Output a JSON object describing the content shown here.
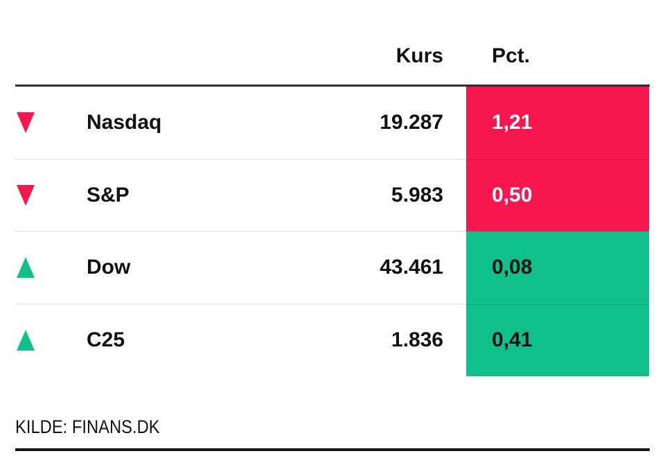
{
  "chart_data": {
    "type": "table",
    "columns": [
      "Kurs",
      "Pct."
    ],
    "rows": [
      {
        "label": "Nasdaq",
        "direction": "down",
        "kurs": "19.287",
        "pct": "1,21"
      },
      {
        "label": "S&P",
        "direction": "down",
        "kurs": "5.983",
        "pct": "0,50"
      },
      {
        "label": "Dow",
        "direction": "up",
        "kurs": "43.461",
        "pct": "0,08"
      },
      {
        "label": "C25",
        "direction": "up",
        "kurs": "1.836",
        "pct": "0,41"
      }
    ],
    "source": "KILDE: FINANS.DK"
  },
  "colors": {
    "negative": "#F8164E",
    "positive": "#0FC08D",
    "negative_text": "#FFFFFF",
    "positive_text": "#111111",
    "header_rule": "#2D2D33",
    "footer_rule": "#141414",
    "row_separator": "#EBEBEB",
    "text": "#111111",
    "background": "#FFFFFF"
  }
}
